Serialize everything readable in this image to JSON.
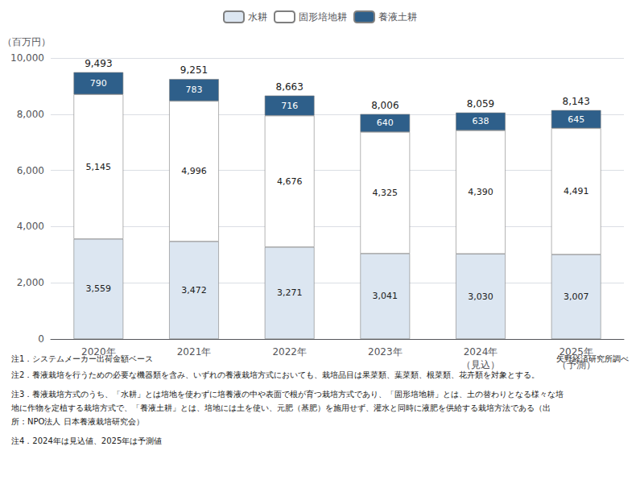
{
  "chart_data": {
    "type": "bar",
    "stacked": true,
    "data_labels": true,
    "grid": true,
    "legend": "top",
    "categories": [
      "2020年",
      "2021年",
      "2022年",
      "2023年",
      "2024年\n（見込）",
      "2025年\n（予測）"
    ],
    "series": [
      {
        "name": "水耕",
        "color": "#dce6f1",
        "values": [
          3559,
          3472,
          3271,
          3041,
          3030,
          3007
        ],
        "value_labels": [
          "3,559",
          "3,472",
          "3,271",
          "3,041",
          "3,030",
          "3,007"
        ]
      },
      {
        "name": "固形培地耕",
        "color": "#ffffff",
        "values": [
          5145,
          4996,
          4676,
          4325,
          4390,
          4491
        ],
        "value_labels": [
          "5,145",
          "4,996",
          "4,676",
          "4,325",
          "4,390",
          "4,491"
        ]
      },
      {
        "name": "養液土耕",
        "color": "#2e5f8a",
        "values": [
          790,
          783,
          716,
          640,
          638,
          645
        ],
        "value_labels": [
          "790",
          "783",
          "716",
          "640",
          "638",
          "645"
        ]
      }
    ],
    "annotations": [
      {
        "category": "2020年",
        "text": "9,493"
      },
      {
        "category": "2021年",
        "text": "9,251"
      },
      {
        "category": "2022年",
        "text": "8,663"
      },
      {
        "category": "2023年",
        "text": "8,006"
      },
      {
        "category": "2024年\n（見込）",
        "text": "8,059"
      },
      {
        "category": "2025年\n（予測）",
        "text": "8,143"
      }
    ],
    "ylabel": "（百万円）",
    "ylim": [
      0,
      10000
    ],
    "yticks": [
      0,
      {
        "value": 2000,
        "label": "2,000"
      },
      {
        "value": 4000,
        "label": "4,000"
      },
      {
        "value": 6000,
        "label": "6,000"
      },
      {
        "value": 8000,
        "label": "8,000"
      },
      {
        "value": 10000,
        "label": "10,000"
      }
    ],
    "notes": [
      "注1．システムメーカー出荷金額ベース",
      "注2．養液栽培を行うための必要な機器類を含み、いずれの養液栽培方式においても、栽培品目は果菜類、葉菜類、根菜類、花卉類を対象とする。",
      "注3．養液栽培方式のうち、「水耕」とは培地を使わずに培養液の中や表面で根が育つ栽培方式であり、「固形培地耕」とは、土の替わりとなる様々な培",
      "地に作物を定植する栽培方式で、「養液土耕」とは、培地には土を使い、元肥（基肥）を施用せず、灌水と同時に液肥を供給する栽培方法である（出",
      "所：NPO法人 日本養液栽培研究会）",
      "注4．2024年は見込値、2025年は予測値"
    ],
    "source": "矢野経済研究所調べ"
  }
}
